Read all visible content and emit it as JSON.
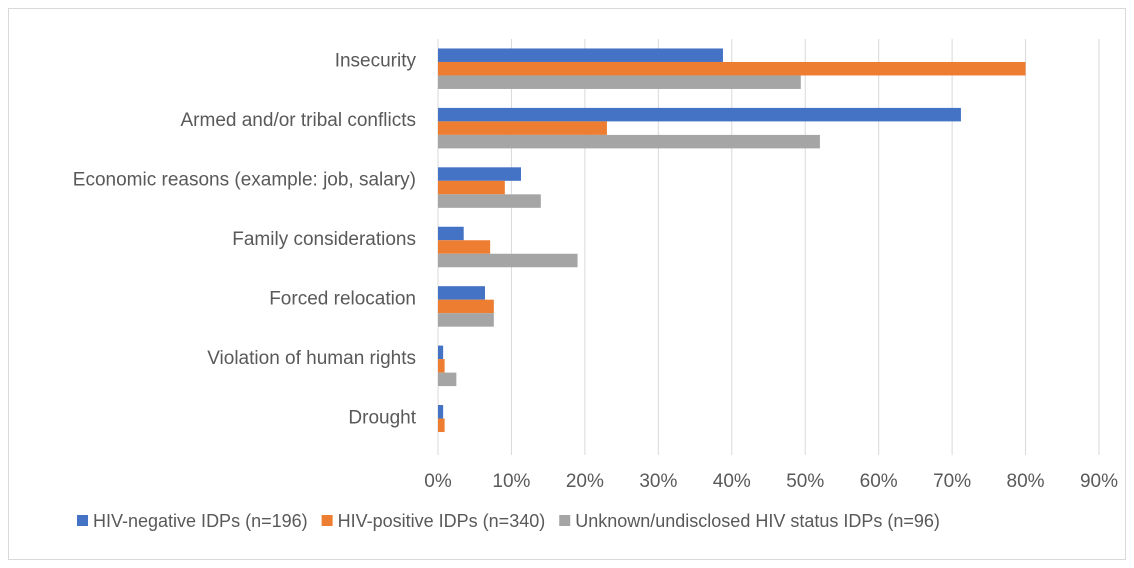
{
  "chart_data": {
    "type": "bar",
    "orientation": "horizontal",
    "title": "",
    "xlabel": "",
    "ylabel": "",
    "xlim": [
      0,
      90
    ],
    "x_ticks": [
      0,
      10,
      20,
      30,
      40,
      50,
      60,
      70,
      80,
      90
    ],
    "x_tick_labels": [
      "0%",
      "10%",
      "20%",
      "30%",
      "40%",
      "50%",
      "60%",
      "70%",
      "80%",
      "90%"
    ],
    "grid": "vertical",
    "legend_position": "bottom",
    "categories": [
      "Insecurity",
      "Armed and/or tribal conflicts",
      "Economic reasons (example: job, salary)",
      "Family considerations",
      "Forced relocation",
      "Violation of human rights",
      "Drought"
    ],
    "series": [
      {
        "name": "HIV-negative IDPs (n=196)",
        "color": "#4472c4",
        "values": [
          38.8,
          71.2,
          11.3,
          3.5,
          6.4,
          0.7,
          0.7
        ]
      },
      {
        "name": "HIV-positive IDPs (n=340)",
        "color": "#ed7d31",
        "values": [
          80.0,
          23.0,
          9.1,
          7.1,
          7.6,
          0.9,
          0.9
        ]
      },
      {
        "name": "Unknown/undisclosed HIV status IDPs (n=96)",
        "color": "#a5a5a5",
        "values": [
          49.4,
          52.0,
          14.0,
          19.0,
          7.6,
          2.5,
          0
        ]
      }
    ]
  }
}
